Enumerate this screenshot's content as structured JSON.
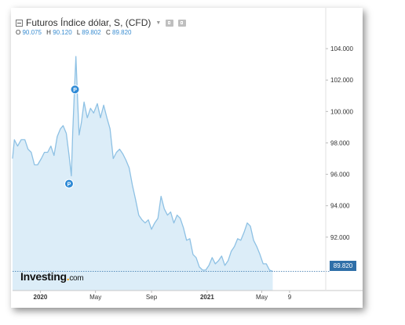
{
  "header": {
    "title": "Futuros Índice dólar, S, (CFD)",
    "ohlc": [
      {
        "label": "O",
        "value": "90.075"
      },
      {
        "label": "H",
        "value": "90.120"
      },
      {
        "label": "L",
        "value": "89.802"
      },
      {
        "label": "C",
        "value": "89.820"
      }
    ]
  },
  "last_price": "89.820",
  "logo": {
    "main": "Investing",
    "dot": ".",
    "suffix": "com"
  },
  "marker_label": "P",
  "colors": {
    "line": "#8ec1e4",
    "fill": "#dcedf8",
    "price_tag": "#2f6fa8",
    "marker": "#2e8ad6",
    "axis_text": "#333333"
  },
  "chart_data": {
    "type": "area",
    "title": "Futuros Índice dólar, S, (CFD)",
    "xlabel": "",
    "ylabel": "",
    "ylim": [
      88.6,
      105.6
    ],
    "yticks": [
      "104.000",
      "102.000",
      "100.000",
      "98.000",
      "96.000",
      "94.000",
      "92.000"
    ],
    "yticks_values": [
      104,
      102,
      100,
      98,
      96,
      94,
      92
    ],
    "xticks": [
      {
        "label": "2020",
        "date": "2020-01-01",
        "bold": true
      },
      {
        "label": "May",
        "date": "2020-05-01",
        "bold": false
      },
      {
        "label": "Sep",
        "date": "2020-09-01",
        "bold": false
      },
      {
        "label": "2021",
        "date": "2021-01-01",
        "bold": true
      },
      {
        "label": "May",
        "date": "2021-05-01",
        "bold": false
      },
      {
        "label": "9",
        "date": "2021-07-01",
        "bold": false
      }
    ],
    "xlim": [
      "2019-11-01",
      "2021-07-08"
    ],
    "grid": false,
    "legend": "none",
    "last_value": 89.82,
    "markers": [
      {
        "label": "P",
        "date": "2020-03-17",
        "value": 101.4
      },
      {
        "label": "P",
        "date": "2020-03-04",
        "value": 95.4
      }
    ],
    "series": [
      {
        "dates": [
          "2019-11-01",
          "2019-11-05",
          "2019-11-12",
          "2019-11-20",
          "2019-11-28",
          "2019-12-05",
          "2019-12-12",
          "2019-12-19",
          "2019-12-26",
          "2020-01-03",
          "2020-01-10",
          "2020-01-17",
          "2020-01-24",
          "2020-01-31",
          "2020-02-07",
          "2020-02-14",
          "2020-02-20",
          "2020-02-27",
          "2020-03-04",
          "2020-03-09",
          "2020-03-12",
          "2020-03-16",
          "2020-03-19",
          "2020-03-23",
          "2020-03-26",
          "2020-03-31",
          "2020-04-06",
          "2020-04-13",
          "2020-04-20",
          "2020-04-27",
          "2020-05-05",
          "2020-05-12",
          "2020-05-19",
          "2020-05-26",
          "2020-06-02",
          "2020-06-09",
          "2020-06-16",
          "2020-06-23",
          "2020-06-30",
          "2020-07-07",
          "2020-07-14",
          "2020-07-21",
          "2020-07-28",
          "2020-08-04",
          "2020-08-11",
          "2020-08-18",
          "2020-08-25",
          "2020-09-01",
          "2020-09-08",
          "2020-09-15",
          "2020-09-22",
          "2020-09-29",
          "2020-10-06",
          "2020-10-13",
          "2020-10-20",
          "2020-10-27",
          "2020-11-03",
          "2020-11-10",
          "2020-11-17",
          "2020-11-24",
          "2020-12-01",
          "2020-12-08",
          "2020-12-15",
          "2020-12-22",
          "2020-12-29",
          "2021-01-05",
          "2021-01-12",
          "2021-01-19",
          "2021-01-26",
          "2021-02-02",
          "2021-02-09",
          "2021-02-16",
          "2021-02-23",
          "2021-03-02",
          "2021-03-09",
          "2021-03-16",
          "2021-03-23",
          "2021-03-30",
          "2021-04-06",
          "2021-04-13",
          "2021-04-20",
          "2021-04-27",
          "2021-05-04",
          "2021-05-11",
          "2021-05-18",
          "2021-05-25"
        ],
        "values": [
          97.0,
          98.2,
          97.8,
          98.2,
          98.2,
          97.6,
          97.4,
          96.6,
          96.6,
          97.0,
          97.4,
          97.4,
          97.8,
          97.2,
          98.4,
          98.9,
          99.1,
          98.6,
          97.2,
          95.9,
          98.6,
          101.4,
          103.5,
          100.6,
          98.5,
          99.3,
          100.6,
          99.6,
          100.2,
          99.9,
          100.5,
          99.6,
          100.4,
          99.6,
          98.9,
          97.0,
          97.4,
          97.6,
          97.3,
          96.9,
          96.4,
          95.3,
          94.4,
          93.4,
          93.1,
          92.9,
          93.1,
          92.5,
          92.9,
          93.2,
          94.6,
          93.8,
          93.4,
          93.6,
          92.9,
          93.4,
          93.2,
          92.6,
          91.8,
          91.9,
          90.9,
          90.7,
          90.1,
          89.9,
          89.9,
          90.2,
          90.7,
          90.3,
          90.5,
          90.8,
          90.2,
          90.5,
          91.1,
          91.4,
          91.9,
          91.8,
          92.3,
          92.9,
          92.7,
          91.8,
          91.4,
          90.9,
          90.3,
          90.3,
          89.9,
          89.82
        ]
      }
    ]
  }
}
